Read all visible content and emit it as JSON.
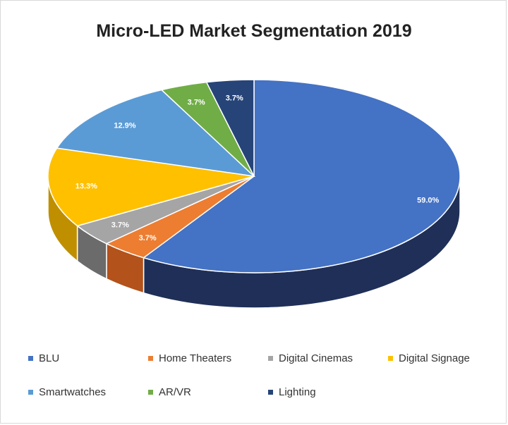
{
  "chart_data": {
    "type": "pie",
    "title": "Micro-LED Market Segmentation 2019",
    "categories": [
      "BLU",
      "Home Theaters",
      "Digital Cinemas",
      "Digital Signage",
      "Smartwatches",
      "AR/VR",
      "Lighting"
    ],
    "values": [
      59.0,
      3.7,
      3.7,
      13.3,
      12.9,
      3.7,
      3.7
    ],
    "labels": [
      "59.0%",
      "3.7%",
      "3.7%",
      "13.3%",
      "12.9%",
      "3.7%",
      "3.7%"
    ],
    "colors": [
      "#4472c4",
      "#ed7d31",
      "#a5a5a5",
      "#ffc000",
      "#5b9bd5",
      "#70ad47",
      "#264478"
    ],
    "side_colors": [
      "#1f2f57",
      "#b3521a",
      "#6b6b6b",
      "#bf8f00",
      "#2e6ba3",
      "#4a7a2e",
      "#15264a"
    ],
    "legend_position": "bottom",
    "style": "3d"
  }
}
